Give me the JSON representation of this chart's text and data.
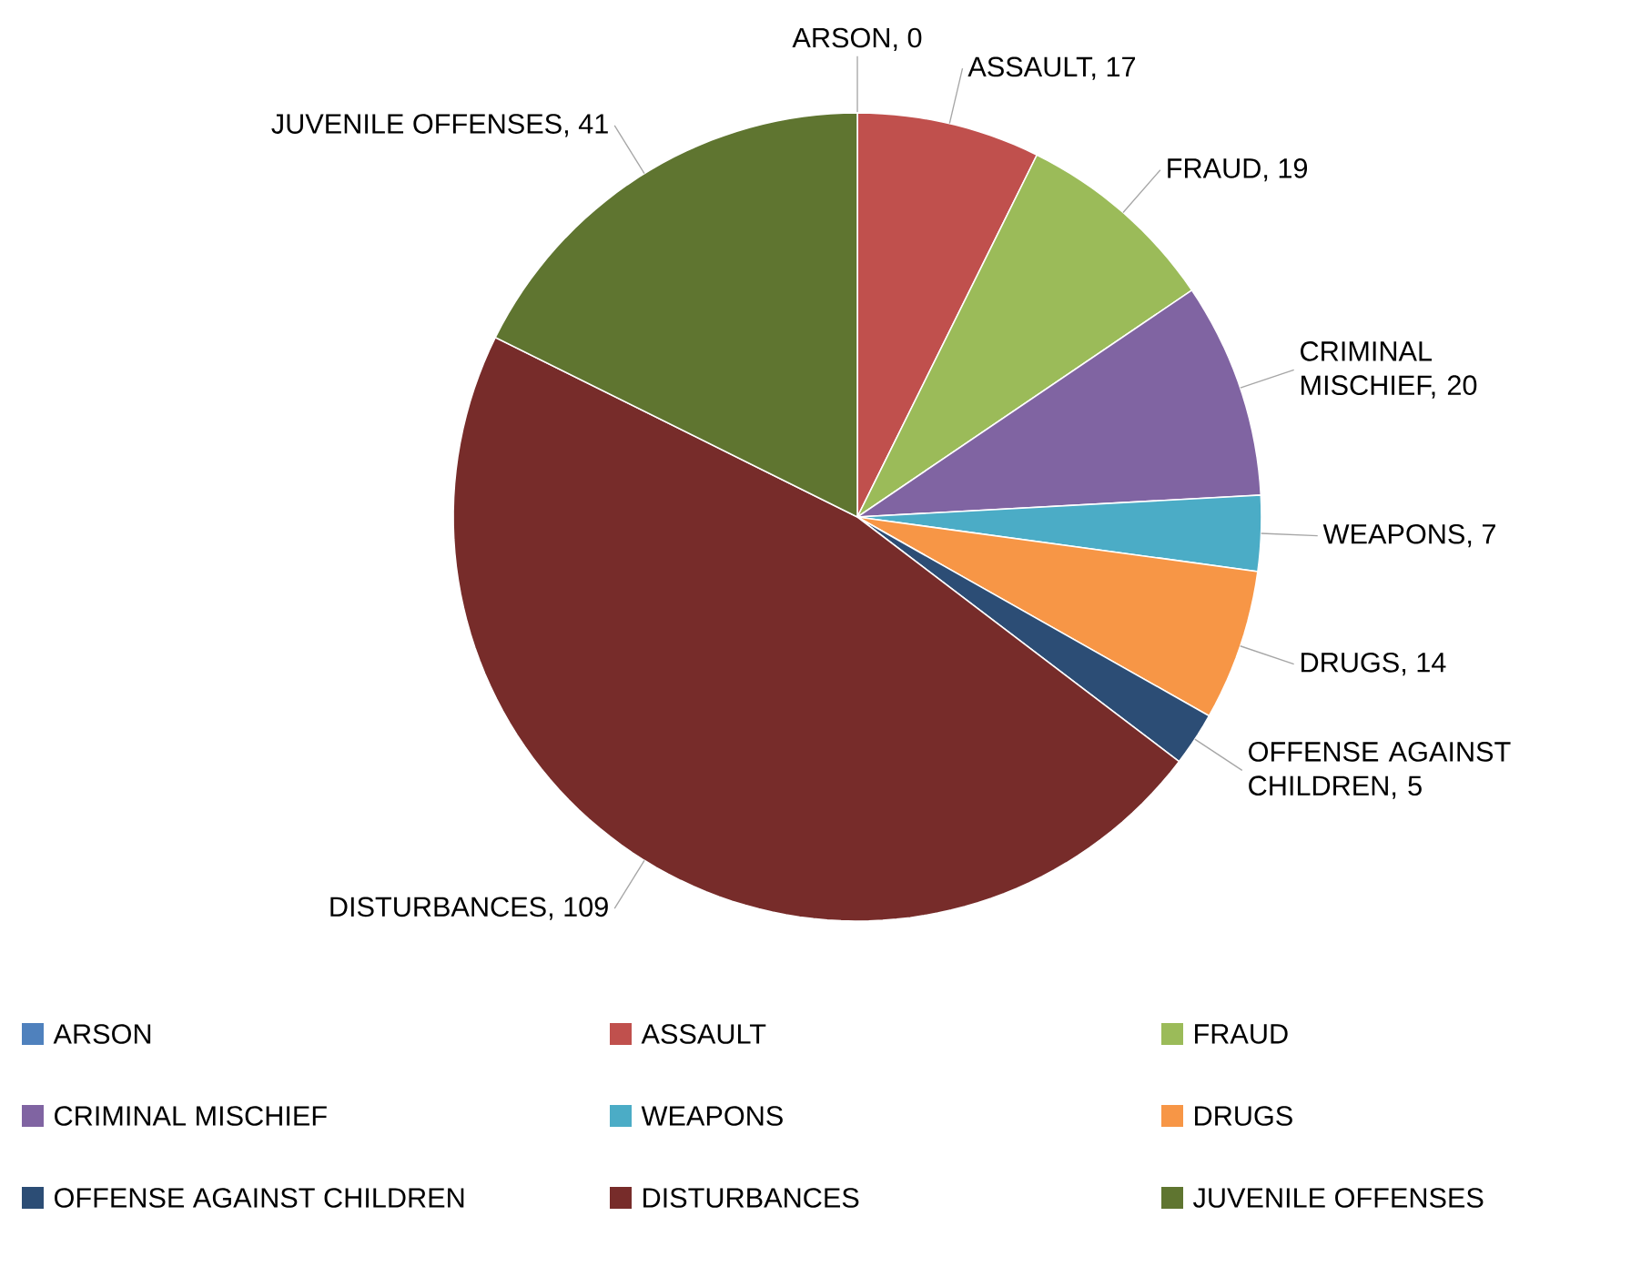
{
  "chart_data": {
    "type": "pie",
    "categories": [
      "ARSON",
      "ASSAULT",
      "FRAUD",
      "CRIMINAL MISCHIEF",
      "WEAPONS",
      "DRUGS",
      "OFFENSE AGAINST CHILDREN",
      "DISTURBANCES",
      "JUVENILE OFFENSES"
    ],
    "values": [
      0,
      17,
      19,
      20,
      7,
      14,
      5,
      109,
      41
    ],
    "colors": [
      "#4f81bd",
      "#c0504d",
      "#9bbb59",
      "#8064a2",
      "#4bacc6",
      "#f79646",
      "#2c4d75",
      "#772c2a",
      "#5f7530"
    ],
    "value_labels": [
      "ARSON, 0",
      "ASSAULT, 17",
      "FRAUD, 19",
      "CRIMINAL MISCHIEF, 20",
      "WEAPONS, 7",
      "DRUGS, 14",
      "OFFENSE AGAINST CHILDREN, 5",
      "DISTURBANCES, 109",
      "JUVENILE OFFENSES, 41"
    ],
    "legend": "bottom"
  }
}
